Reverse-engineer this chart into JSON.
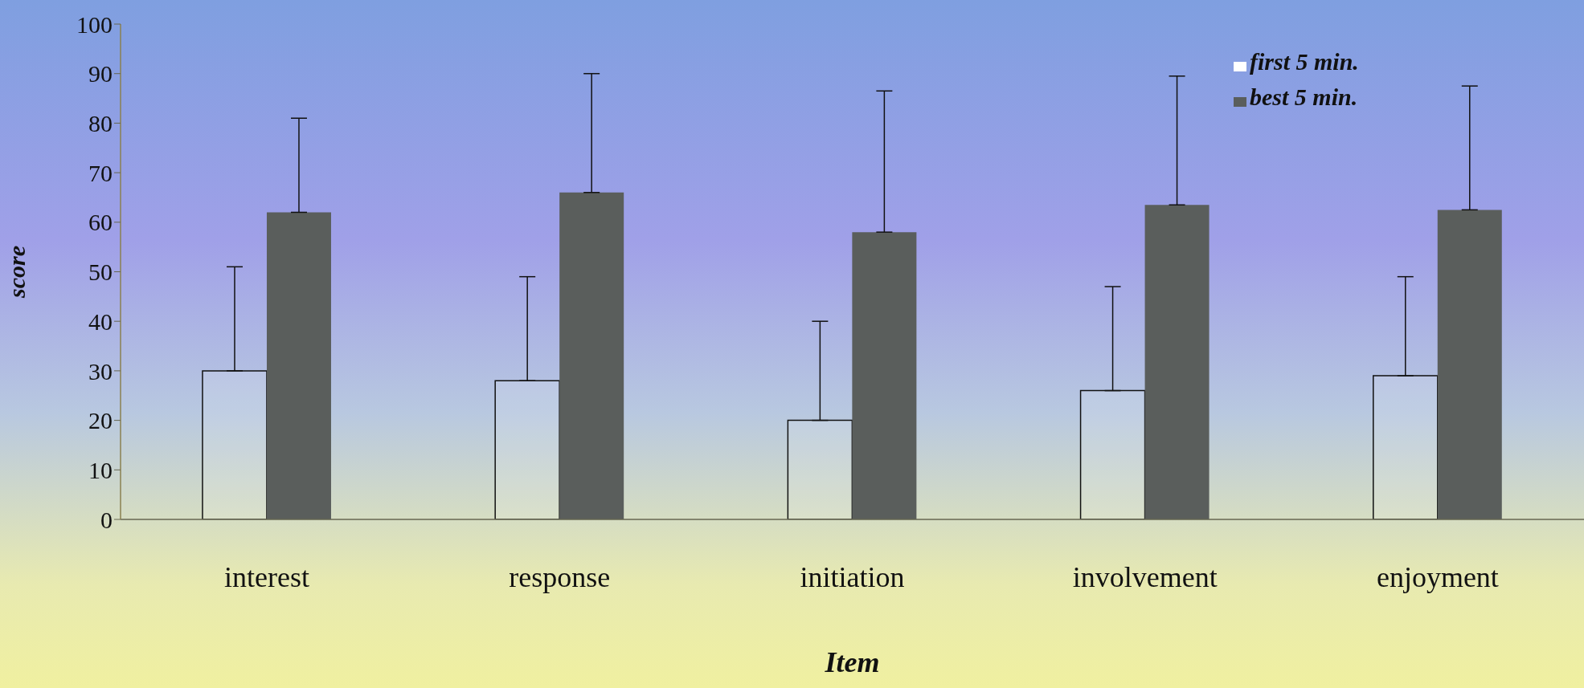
{
  "chart_data": {
    "type": "bar",
    "xlabel": "Item",
    "ylabel": "score",
    "categories": [
      "interest",
      "response",
      "initiation",
      "involvement",
      "enjoyment"
    ],
    "series": [
      {
        "name": "first 5 min.",
        "color": "#ffffff",
        "values": [
          30,
          28,
          20,
          26,
          29
        ],
        "errors": [
          [
            30,
            51
          ],
          [
            28,
            49
          ],
          [
            20,
            40
          ],
          [
            26,
            47
          ],
          [
            29,
            49
          ]
        ]
      },
      {
        "name": "best 5 min.",
        "color": "#5a5e5c",
        "values": [
          62,
          66,
          58,
          63.5,
          62.5
        ],
        "errors": [
          [
            62,
            81
          ],
          [
            66,
            90
          ],
          [
            58,
            86.5
          ],
          [
            63.5,
            89.5
          ],
          [
            62.5,
            87.5
          ]
        ]
      }
    ],
    "ylim": [
      0,
      100
    ],
    "yticks": [
      0,
      10,
      20,
      30,
      40,
      50,
      60,
      70,
      80,
      90,
      100
    ],
    "grid": false,
    "legend": "top right"
  }
}
